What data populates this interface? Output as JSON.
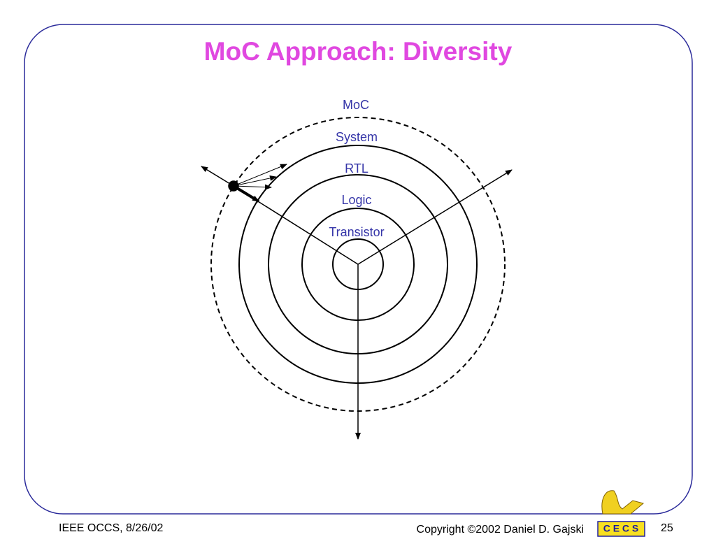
{
  "header": {
    "title": "MoC Approach: Diversity"
  },
  "rings": [
    "MoC",
    "System",
    "RTL",
    "Logic",
    "Transistor"
  ],
  "footer": {
    "left": "IEEE OCCS, 8/26/02",
    "copyright": "Copyright ©2002 Daniel D. Gajski",
    "logo": "C E C S",
    "page": "25"
  }
}
